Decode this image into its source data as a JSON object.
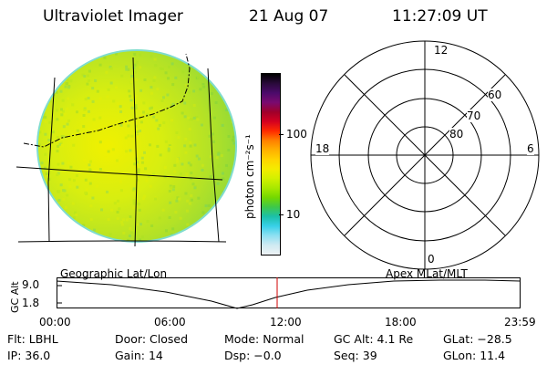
{
  "header": {
    "instrument": "Ultraviolet Imager",
    "date": "21 Aug 07",
    "time": "11:27:09 UT"
  },
  "colorbar": {
    "unit_label": "photon cm⁻²s⁻¹",
    "ticks": [
      {
        "label": "100",
        "value": 100
      },
      {
        "label": "10",
        "value": 10
      }
    ],
    "colors": [
      "#000000",
      "#2a0a3a",
      "#4b0a6a",
      "#7a0a70",
      "#a0002a",
      "#d40020",
      "#ff2a00",
      "#ff7f00",
      "#ffb000",
      "#ffd400",
      "#f4ec00",
      "#d2f000",
      "#a8e800",
      "#74d800",
      "#3ec84a",
      "#1cc0a8",
      "#38d0e8",
      "#8ee0f2",
      "#cfeaf2",
      "#eef2f4"
    ]
  },
  "polar_plot": {
    "mlt_labels": {
      "top": "12",
      "left": "18",
      "right": "6",
      "bottom": "0"
    },
    "lat_labels": [
      "60",
      "70",
      "80"
    ]
  },
  "altitude_plot": {
    "ylabel": "GC Alt",
    "yticks": [
      "9.0",
      "1.8"
    ],
    "left_label": "Geographic Lat/Lon",
    "right_label": "Apex MLat/MLT",
    "xticks": [
      "00:00",
      "06:00",
      "12:00",
      "18:00",
      "23:59"
    ],
    "current_time_color": "#d00000"
  },
  "status": {
    "row1": [
      {
        "label": "Flt:",
        "value": "LBHL"
      },
      {
        "label": "Door:",
        "value": "Closed"
      },
      {
        "label": "Mode:",
        "value": "Normal"
      },
      {
        "label": "GC Alt:",
        "value": "4.1 Re"
      },
      {
        "label": "GLat:",
        "value": "−28.5"
      }
    ],
    "row2": [
      {
        "label": "IP:",
        "value": "36.0"
      },
      {
        "label": "Gain:",
        "value": "14"
      },
      {
        "label": "Dsp:",
        "value": "−0.0"
      },
      {
        "label": "Seq:",
        "value": "39"
      },
      {
        "label": "GLon:",
        "value": "11.4"
      }
    ]
  }
}
